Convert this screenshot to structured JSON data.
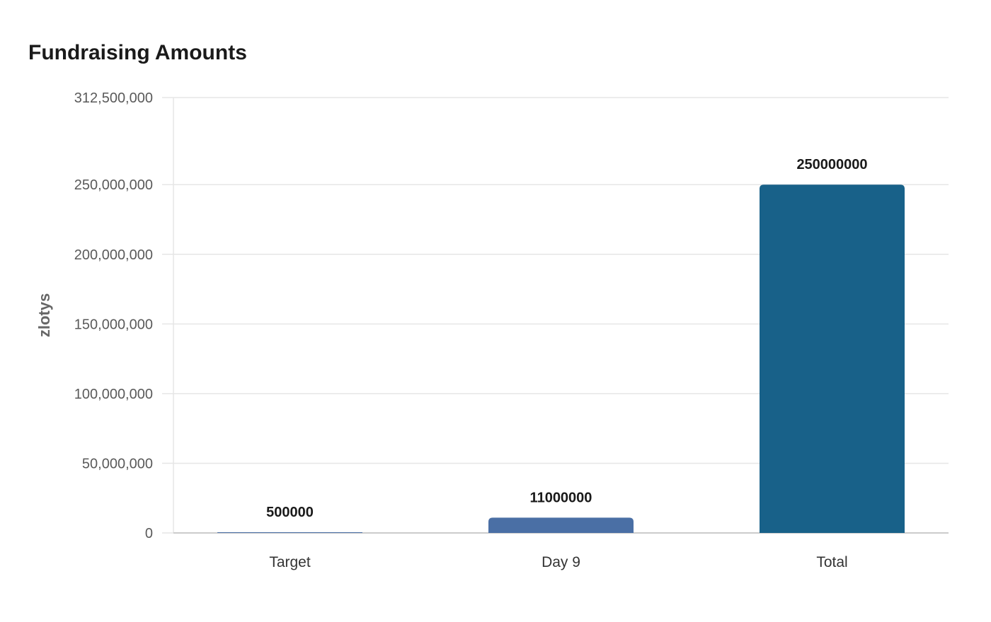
{
  "chart_data": {
    "type": "bar",
    "title": "Fundraising Amounts",
    "xlabel": "",
    "ylabel": "zlotys",
    "categories": [
      "Target",
      "Day 9",
      "Total"
    ],
    "values": [
      500000,
      11000000,
      250000000
    ],
    "data_labels": [
      "500000",
      "11000000",
      "250000000"
    ],
    "ylim": [
      0,
      312500000
    ],
    "yticks": [
      0,
      50000000,
      100000000,
      150000000,
      200000000,
      250000000,
      312500000
    ],
    "ytick_labels": [
      "0",
      "50,000,000",
      "100,000,000",
      "150,000,000",
      "200,000,000",
      "250,000,000",
      "312,500,000"
    ],
    "grid": true,
    "legend": "none",
    "colors": {
      "Target": "#4a6fa5",
      "Day 9": "#4a6fa5",
      "Total": "#186189"
    },
    "gridline_color": "#e6e6e6",
    "axis_color": "#cccccc"
  }
}
